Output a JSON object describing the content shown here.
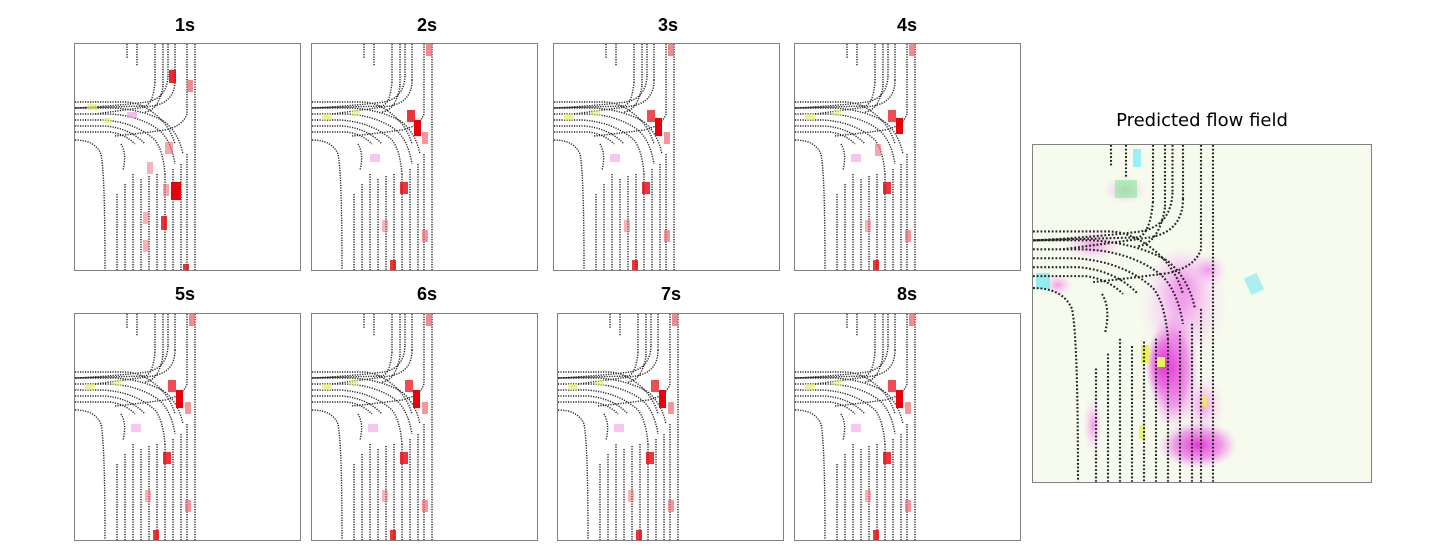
{
  "frames": [
    {
      "label": "1s"
    },
    {
      "label": "2s"
    },
    {
      "label": "3s"
    },
    {
      "label": "4s"
    },
    {
      "label": "5s"
    },
    {
      "label": "6s"
    },
    {
      "label": "7s"
    },
    {
      "label": "8s"
    }
  ],
  "flow_panel": {
    "title": "Predicted flow field"
  },
  "colors": {
    "lane_dots": "#222222",
    "agent_red": "#e8000a",
    "agent_light_red": "#f06a72",
    "ped_yellow": "#e8f06a",
    "ped_pink": "#f0a0e0",
    "flow_bg": "#f6fbee",
    "flow_magenta": "#e040d8",
    "flow_cyan": "#80f0f0",
    "flow_green": "#90f0a0"
  }
}
